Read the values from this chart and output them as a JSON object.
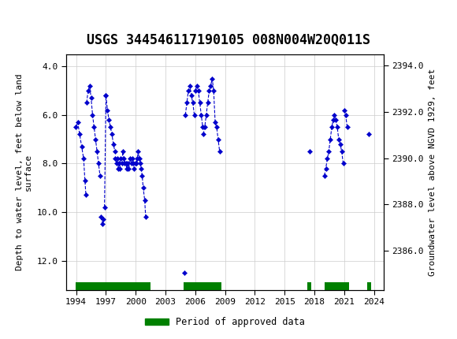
{
  "title": "USGS 344546117190105 008N004W20Q011S",
  "ylabel_left": "Depth to water level, feet below land\nsurface",
  "ylabel_right": "Groundwater level above NGVD 1929, feet",
  "xlim": [
    1993.0,
    2025.0
  ],
  "ylim_left": [
    13.2,
    3.5
  ],
  "ylim_right": [
    2384.3,
    2394.5
  ],
  "xticks": [
    1994,
    1997,
    2000,
    2003,
    2006,
    2009,
    2012,
    2015,
    2018,
    2021,
    2024
  ],
  "yticks_left": [
    4.0,
    6.0,
    8.0,
    10.0,
    12.0
  ],
  "yticks_right": [
    2394.0,
    2392.0,
    2390.0,
    2388.0,
    2386.0
  ],
  "background_color": "#ffffff",
  "header_color": "#1a6b3c",
  "data_color": "#0000cc",
  "approved_color": "#008000",
  "title_fontsize": 12,
  "axis_label_fontsize": 8,
  "tick_fontsize": 8,
  "clusters": [
    [
      [
        1993.95,
        6.5
      ],
      [
        1994.15,
        6.3
      ],
      [
        1994.35,
        6.8
      ],
      [
        1994.55,
        7.3
      ],
      [
        1994.75,
        7.8
      ],
      [
        1994.88,
        8.7
      ],
      [
        1994.98,
        9.3
      ]
    ],
    [
      [
        1995.05,
        5.5
      ],
      [
        1995.2,
        5.0
      ],
      [
        1995.35,
        4.8
      ],
      [
        1995.5,
        5.3
      ],
      [
        1995.65,
        6.0
      ],
      [
        1995.8,
        6.5
      ],
      [
        1995.95,
        7.0
      ],
      [
        1996.1,
        7.5
      ],
      [
        1996.25,
        8.0
      ],
      [
        1996.4,
        8.5
      ]
    ],
    [
      [
        1996.5,
        10.2
      ],
      [
        1996.65,
        10.5
      ],
      [
        1996.75,
        10.3
      ]
    ],
    [
      [
        1996.85,
        9.8
      ],
      [
        1997.0,
        5.2
      ]
    ],
    [
      [
        1997.0,
        5.2
      ],
      [
        1997.15,
        5.8
      ],
      [
        1997.3,
        6.2
      ],
      [
        1997.45,
        6.5
      ],
      [
        1997.6,
        6.8
      ],
      [
        1997.75,
        7.2
      ],
      [
        1997.9,
        7.5
      ]
    ],
    [
      [
        1997.95,
        7.8
      ],
      [
        1998.05,
        8.0
      ],
      [
        1998.15,
        7.8
      ]
    ],
    [
      [
        1998.2,
        8.2
      ],
      [
        1998.3,
        8.0
      ],
      [
        1998.4,
        8.2
      ],
      [
        1998.5,
        7.8
      ],
      [
        1998.6,
        8.0
      ],
      [
        1998.7,
        7.5
      ],
      [
        1998.8,
        7.8
      ],
      [
        1998.9,
        8.0
      ],
      [
        1999.0,
        8.0
      ],
      [
        1999.1,
        8.2
      ],
      [
        1999.2,
        8.0
      ],
      [
        1999.3,
        8.2
      ],
      [
        1999.45,
        7.8
      ],
      [
        1999.55,
        8.0
      ],
      [
        1999.65,
        7.8
      ],
      [
        1999.75,
        8.0
      ],
      [
        1999.85,
        8.2
      ],
      [
        1999.95,
        8.0
      ],
      [
        2000.05,
        8.0
      ],
      [
        2000.15,
        7.8
      ],
      [
        2000.25,
        7.5
      ],
      [
        2000.35,
        7.8
      ],
      [
        2000.45,
        8.0
      ],
      [
        2000.55,
        8.2
      ],
      [
        2000.65,
        8.5
      ],
      [
        2000.75,
        9.0
      ],
      [
        2000.9,
        9.5
      ],
      [
        2001.0,
        10.2
      ]
    ],
    [
      [
        2004.9,
        12.5
      ]
    ],
    [
      [
        2005.0,
        6.0
      ],
      [
        2005.15,
        5.5
      ],
      [
        2005.3,
        5.0
      ],
      [
        2005.45,
        4.8
      ],
      [
        2005.6,
        5.2
      ],
      [
        2005.75,
        5.5
      ],
      [
        2005.9,
        6.0
      ]
    ],
    [
      [
        2006.0,
        5.0
      ],
      [
        2006.15,
        4.8
      ],
      [
        2006.3,
        5.0
      ],
      [
        2006.45,
        5.5
      ],
      [
        2006.6,
        6.0
      ],
      [
        2006.75,
        6.5
      ]
    ],
    [
      [
        2006.8,
        6.8
      ],
      [
        2006.95,
        6.5
      ],
      [
        2007.1,
        6.0
      ],
      [
        2007.25,
        5.5
      ],
      [
        2007.4,
        5.0
      ],
      [
        2007.55,
        4.8
      ],
      [
        2007.7,
        4.5
      ],
      [
        2007.85,
        5.0
      ],
      [
        2008.0,
        6.3
      ],
      [
        2008.15,
        6.5
      ],
      [
        2008.3,
        7.0
      ],
      [
        2008.45,
        7.5
      ]
    ],
    [
      [
        2017.5,
        7.5
      ]
    ],
    [
      [
        2019.0,
        8.5
      ],
      [
        2019.15,
        8.2
      ],
      [
        2019.3,
        7.8
      ],
      [
        2019.45,
        7.5
      ],
      [
        2019.6,
        7.0
      ],
      [
        2019.75,
        6.5
      ],
      [
        2019.9,
        6.2
      ]
    ],
    [
      [
        2020.0,
        6.0
      ],
      [
        2020.15,
        6.2
      ],
      [
        2020.3,
        6.5
      ],
      [
        2020.45,
        7.0
      ],
      [
        2020.6,
        7.2
      ],
      [
        2020.75,
        7.5
      ],
      [
        2020.9,
        8.0
      ]
    ],
    [
      [
        2021.0,
        5.8
      ],
      [
        2021.15,
        6.0
      ],
      [
        2021.3,
        6.5
      ]
    ],
    [
      [
        2023.5,
        6.8
      ]
    ]
  ],
  "approved_bars": [
    [
      1993.95,
      2001.5
    ],
    [
      2004.85,
      2008.6
    ],
    [
      2017.3,
      2017.7
    ],
    [
      2019.0,
      2021.5
    ],
    [
      2023.3,
      2023.75
    ]
  ],
  "approved_bar_ydata": 13.05,
  "approved_bar_height_data": 0.35
}
